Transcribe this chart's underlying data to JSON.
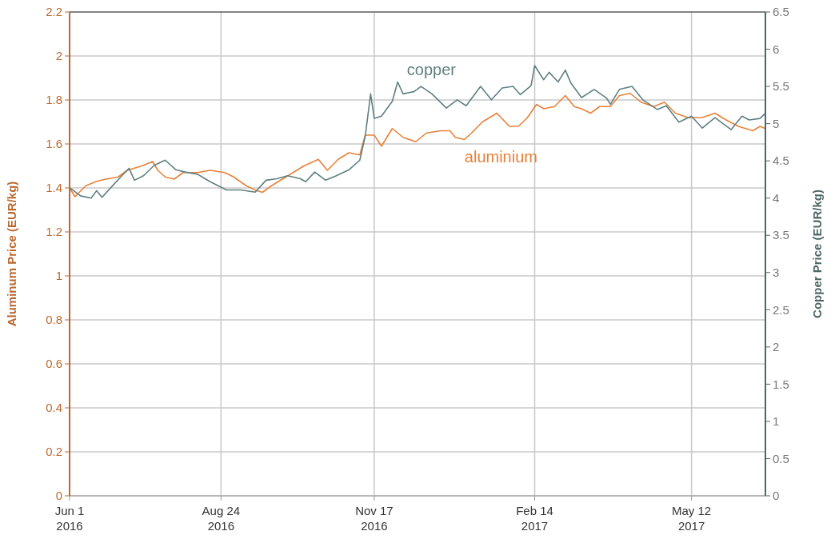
{
  "chart_data": {
    "type": "line",
    "ylabel": "Aluminum Price (EUR/kg)",
    "y2label": "Copper Price (EUR/kg)",
    "legend": false,
    "grid": true,
    "line_style": "solid",
    "marker": "none",
    "xlim": [
      "2016-06-01",
      "2017-06-22"
    ],
    "xticks": [
      {
        "value": "2016-06-01",
        "label": "Jun 1\n2016"
      },
      {
        "value": "2016-08-24",
        "label": "Aug 24\n2016"
      },
      {
        "value": "2016-11-17",
        "label": "Nov 17\n2016"
      },
      {
        "value": "2017-02-14",
        "label": "Feb 14\n2017"
      },
      {
        "value": "2017-05-12",
        "label": "May 12\n2017"
      }
    ],
    "ylim": [
      0,
      2.2
    ],
    "yticks": [
      0,
      0.2,
      0.4,
      0.6,
      0.8,
      1,
      1.2,
      1.4,
      1.6,
      1.8,
      2,
      2.2
    ],
    "y2lim": [
      0,
      6.5
    ],
    "y2ticks": [
      0,
      0.5,
      1,
      1.5,
      2,
      2.5,
      3,
      3.5,
      4,
      4.5,
      5,
      5.5,
      6,
      6.5
    ],
    "series": [
      {
        "name": "aluminium",
        "color": "#e8823a",
        "x": [
          "2016-06-01",
          "2016-06-04",
          "2016-06-10",
          "2016-06-16",
          "2016-06-21",
          "2016-06-28",
          "2016-07-03",
          "2016-07-11",
          "2016-07-17",
          "2016-07-20",
          "2016-07-24",
          "2016-07-29",
          "2016-08-03",
          "2016-08-11",
          "2016-08-18",
          "2016-08-26",
          "2016-08-31",
          "2016-09-07",
          "2016-09-12",
          "2016-09-16",
          "2016-09-21",
          "2016-09-27",
          "2016-10-03",
          "2016-10-09",
          "2016-10-17",
          "2016-10-22",
          "2016-10-28",
          "2016-11-03",
          "2016-11-09",
          "2016-11-12",
          "2016-11-17",
          "2016-11-21",
          "2016-11-27",
          "2016-12-03",
          "2016-12-10",
          "2016-12-16",
          "2016-12-24",
          "2016-12-29",
          "2017-01-01",
          "2017-01-06",
          "2017-01-10",
          "2017-01-16",
          "2017-01-24",
          "2017-01-31",
          "2017-02-05",
          "2017-02-10",
          "2017-02-15",
          "2017-02-19",
          "2017-02-25",
          "2017-03-03",
          "2017-03-08",
          "2017-03-12",
          "2017-03-17",
          "2017-03-22",
          "2017-03-28",
          "2017-04-02",
          "2017-04-08",
          "2017-04-14",
          "2017-04-21",
          "2017-04-27",
          "2017-05-03",
          "2017-05-10",
          "2017-05-18",
          "2017-05-25",
          "2017-05-31",
          "2017-06-07",
          "2017-06-15",
          "2017-06-19",
          "2017-06-22"
        ],
        "values": [
          1.4,
          1.36,
          1.41,
          1.43,
          1.44,
          1.45,
          1.48,
          1.5,
          1.52,
          1.48,
          1.45,
          1.44,
          1.47,
          1.47,
          1.48,
          1.47,
          1.45,
          1.41,
          1.39,
          1.38,
          1.41,
          1.44,
          1.47,
          1.5,
          1.53,
          1.48,
          1.53,
          1.56,
          1.55,
          1.64,
          1.64,
          1.59,
          1.67,
          1.63,
          1.61,
          1.65,
          1.66,
          1.66,
          1.63,
          1.62,
          1.65,
          1.7,
          1.74,
          1.68,
          1.68,
          1.72,
          1.78,
          1.76,
          1.77,
          1.82,
          1.77,
          1.76,
          1.74,
          1.77,
          1.77,
          1.82,
          1.83,
          1.79,
          1.77,
          1.79,
          1.74,
          1.72,
          1.72,
          1.74,
          1.71,
          1.68,
          1.66,
          1.68,
          1.67
        ]
      },
      {
        "name": "copper",
        "color": "#5f8080",
        "axis": "y2",
        "x": [
          "2016-06-01",
          "2016-06-07",
          "2016-06-13",
          "2016-06-16",
          "2016-06-19",
          "2016-06-25",
          "2016-06-30",
          "2016-07-04",
          "2016-07-07",
          "2016-07-12",
          "2016-07-18",
          "2016-07-24",
          "2016-07-30",
          "2016-08-04",
          "2016-08-11",
          "2016-08-18",
          "2016-08-27",
          "2016-09-04",
          "2016-09-12",
          "2016-09-18",
          "2016-09-24",
          "2016-09-30",
          "2016-10-07",
          "2016-10-10",
          "2016-10-15",
          "2016-10-21",
          "2016-10-27",
          "2016-11-03",
          "2016-11-09",
          "2016-11-12",
          "2016-11-15",
          "2016-11-17",
          "2016-11-21",
          "2016-11-27",
          "2016-11-30",
          "2016-12-03",
          "2016-12-09",
          "2016-12-13",
          "2016-12-19",
          "2016-12-27",
          "2017-01-02",
          "2017-01-07",
          "2017-01-15",
          "2017-01-21",
          "2017-01-27",
          "2017-02-02",
          "2017-02-06",
          "2017-02-12",
          "2017-02-14",
          "2017-02-19",
          "2017-02-22",
          "2017-02-27",
          "2017-03-03",
          "2017-03-06",
          "2017-03-12",
          "2017-03-19",
          "2017-03-26",
          "2017-03-28",
          "2017-04-02",
          "2017-04-09",
          "2017-04-15",
          "2017-04-23",
          "2017-04-28",
          "2017-05-05",
          "2017-05-12",
          "2017-05-18",
          "2017-05-25",
          "2017-06-03",
          "2017-06-09",
          "2017-06-13",
          "2017-06-19",
          "2017-06-22"
        ],
        "values": [
          4.14,
          4.03,
          4.0,
          4.1,
          4.01,
          4.17,
          4.3,
          4.4,
          4.24,
          4.3,
          4.44,
          4.51,
          4.38,
          4.35,
          4.32,
          4.22,
          4.11,
          4.11,
          4.08,
          4.24,
          4.26,
          4.3,
          4.26,
          4.22,
          4.35,
          4.24,
          4.3,
          4.38,
          4.51,
          4.83,
          5.4,
          5.07,
          5.1,
          5.3,
          5.56,
          5.4,
          5.43,
          5.5,
          5.4,
          5.21,
          5.32,
          5.24,
          5.5,
          5.32,
          5.48,
          5.5,
          5.39,
          5.51,
          5.78,
          5.59,
          5.69,
          5.56,
          5.72,
          5.55,
          5.35,
          5.46,
          5.34,
          5.26,
          5.46,
          5.5,
          5.32,
          5.19,
          5.24,
          5.02,
          5.1,
          4.94,
          5.08,
          4.92,
          5.1,
          5.05,
          5.07,
          5.14
        ]
      }
    ]
  }
}
